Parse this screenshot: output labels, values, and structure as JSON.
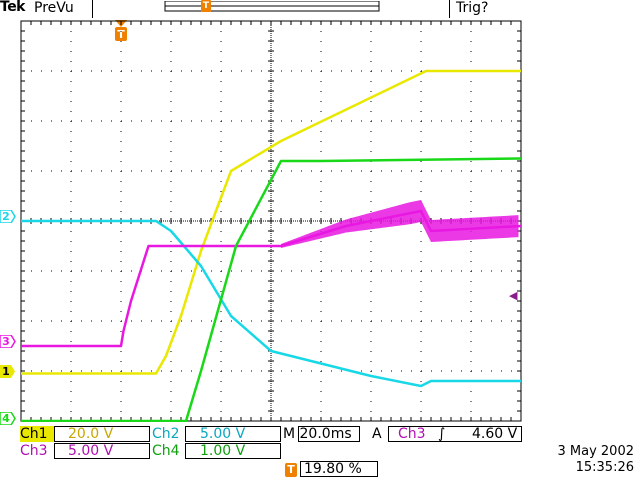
{
  "header": {
    "brand": "Tek",
    "mode": "PreVu",
    "trigger_status": "Trig?",
    "trigger_marker": "T"
  },
  "colors": {
    "ch1": "#e8e800",
    "ch2": "#18d8e8",
    "ch3": "#e818e0",
    "ch4": "#18d818",
    "grid": "#000000",
    "trigger": "#f08000"
  },
  "markers": {
    "ch1": "1",
    "ch2": "2",
    "ch3": "3",
    "ch4": "4",
    "trigger_level": "◀",
    "trigger_pos": "T"
  },
  "readouts": {
    "ch1_label": "Ch1",
    "ch1_scale": "20.0 V",
    "ch2_label": "Ch2",
    "ch2_scale": "5.00 V",
    "ch3_label": "Ch3",
    "ch3_scale": "5.00 V",
    "ch4_label": "Ch4",
    "ch4_scale": "1.00 V",
    "timebase": "M 20.0ms",
    "trigger_mode": "A",
    "trigger_source": "Ch3",
    "trigger_slope": "∫",
    "trigger_level": "4.60 V",
    "trigger_position_icon": "T",
    "trigger_position": "19.80 %"
  },
  "status": {
    "date": "3 May 2002",
    "time": "15:35:26"
  },
  "chart_data": {
    "type": "line",
    "x_divisions": 10,
    "y_divisions": 8,
    "x_unit_per_div": "20.0ms",
    "series": [
      {
        "name": "Ch1",
        "color": "#e8e800",
        "x": [
          0,
          2.7,
          2.9,
          3.2,
          3.6,
          4.2,
          5.2,
          8.1,
          10
        ],
        "y": [
          -3.05,
          -3.05,
          -2.7,
          -1.9,
          -0.6,
          1.0,
          1.6,
          3.0,
          3.0
        ]
      },
      {
        "name": "Ch2",
        "color": "#18d8e8",
        "x": [
          0,
          2.7,
          3.0,
          3.6,
          4.2,
          5.0,
          6.0,
          7.0,
          8.0,
          8.2,
          10
        ],
        "y": [
          0,
          0,
          -0.2,
          -0.9,
          -1.9,
          -2.6,
          -2.85,
          -3.1,
          -3.3,
          -3.2,
          -3.2
        ]
      },
      {
        "name": "Ch3",
        "color": "#e818e0",
        "x": [
          0,
          2.0,
          2.05,
          2.2,
          2.55,
          5.2,
          6.5,
          8.0,
          8.2,
          10
        ],
        "y": [
          -2.5,
          -2.5,
          -2.2,
          -1.6,
          -0.5,
          -0.5,
          -0.1,
          0.2,
          -0.2,
          -0.1
        ]
      },
      {
        "name": "Ch4",
        "color": "#18d818",
        "x": [
          0,
          3.3,
          3.6,
          4.3,
          5.2,
          6.0,
          10
        ],
        "y": [
          -4.0,
          -4.0,
          -3.0,
          -0.5,
          1.2,
          1.2,
          1.25
        ]
      }
    ]
  }
}
